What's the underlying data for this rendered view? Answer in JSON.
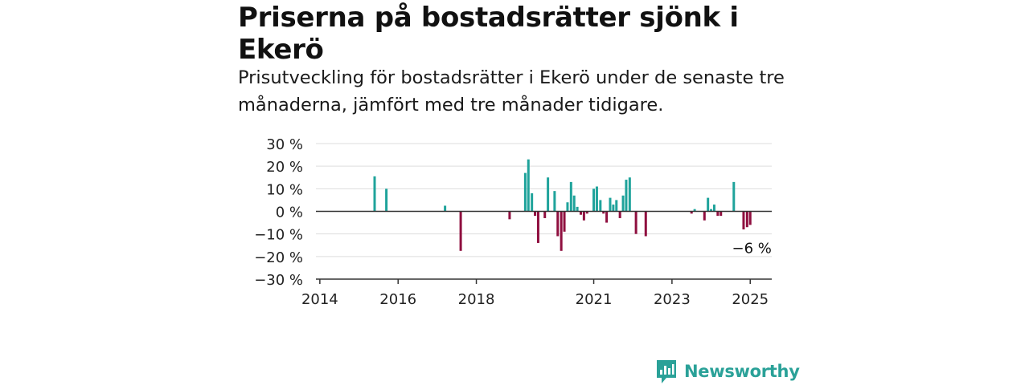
{
  "title": "Priserna på bostadsrätter sjönk i Ekerö",
  "subtitle": "Prisutveckling för bostadsrätter i Ekerö under de senaste tre månaderna, jämfört med tre månader tidigare.",
  "brand": {
    "name": "Newsworthy",
    "icon": "newsworthy-logo-icon",
    "color": "#2aa198"
  },
  "colors": {
    "positive": "#1fa39b",
    "negative": "#8f0f3f",
    "grid": "#dddddd",
    "axis": "#333333"
  },
  "chart_data": {
    "type": "bar",
    "title": "",
    "xlabel": "",
    "ylabel": "",
    "ylim": [
      -30,
      30
    ],
    "y_ticks": [
      30,
      20,
      10,
      0,
      -10,
      -20,
      -30
    ],
    "y_tick_labels": [
      "30 %",
      "20 %",
      "10 %",
      "0 %",
      "−10 %",
      "−20 %",
      "−30 %"
    ],
    "x_range": [
      2013.9,
      2025.55
    ],
    "x_ticks": [
      2014,
      2016,
      2018,
      2021,
      2023,
      2025
    ],
    "x_tick_labels": [
      "2014",
      "2016",
      "2018",
      "2021",
      "2023",
      "2025"
    ],
    "grid": true,
    "annotation": {
      "text": "−6 %",
      "x": 2025.0,
      "y": -6
    },
    "points": [
      {
        "x": 2015.4,
        "y": 15.5
      },
      {
        "x": 2015.7,
        "y": 10
      },
      {
        "x": 2017.2,
        "y": 2.5
      },
      {
        "x": 2017.6,
        "y": -17.5
      },
      {
        "x": 2018.85,
        "y": -3.5
      },
      {
        "x": 2019.25,
        "y": 17
      },
      {
        "x": 2019.33,
        "y": 23
      },
      {
        "x": 2019.42,
        "y": 8
      },
      {
        "x": 2019.5,
        "y": -2
      },
      {
        "x": 2019.58,
        "y": -14
      },
      {
        "x": 2019.75,
        "y": -3
      },
      {
        "x": 2019.83,
        "y": 15
      },
      {
        "x": 2020.0,
        "y": 9
      },
      {
        "x": 2020.08,
        "y": -11
      },
      {
        "x": 2020.17,
        "y": -17.5
      },
      {
        "x": 2020.25,
        "y": -9
      },
      {
        "x": 2020.33,
        "y": 4
      },
      {
        "x": 2020.42,
        "y": 13
      },
      {
        "x": 2020.5,
        "y": 7
      },
      {
        "x": 2020.58,
        "y": 2
      },
      {
        "x": 2020.67,
        "y": -1.5
      },
      {
        "x": 2020.75,
        "y": -4
      },
      {
        "x": 2020.83,
        "y": -1
      },
      {
        "x": 2021.0,
        "y": 10
      },
      {
        "x": 2021.08,
        "y": 11
      },
      {
        "x": 2021.17,
        "y": 5
      },
      {
        "x": 2021.25,
        "y": -1
      },
      {
        "x": 2021.33,
        "y": -5
      },
      {
        "x": 2021.42,
        "y": 6
      },
      {
        "x": 2021.5,
        "y": 3
      },
      {
        "x": 2021.58,
        "y": 5
      },
      {
        "x": 2021.67,
        "y": -3
      },
      {
        "x": 2021.75,
        "y": 7
      },
      {
        "x": 2021.83,
        "y": 14
      },
      {
        "x": 2021.92,
        "y": 15
      },
      {
        "x": 2022.08,
        "y": -10
      },
      {
        "x": 2022.33,
        "y": -11
      },
      {
        "x": 2023.5,
        "y": -1
      },
      {
        "x": 2023.58,
        "y": 1
      },
      {
        "x": 2023.83,
        "y": -4
      },
      {
        "x": 2023.92,
        "y": 6
      },
      {
        "x": 2024.0,
        "y": 1
      },
      {
        "x": 2024.08,
        "y": 3
      },
      {
        "x": 2024.17,
        "y": -2
      },
      {
        "x": 2024.25,
        "y": -2
      },
      {
        "x": 2024.58,
        "y": 13
      },
      {
        "x": 2024.83,
        "y": -8
      },
      {
        "x": 2024.92,
        "y": -7
      },
      {
        "x": 2025.0,
        "y": -6
      }
    ]
  }
}
